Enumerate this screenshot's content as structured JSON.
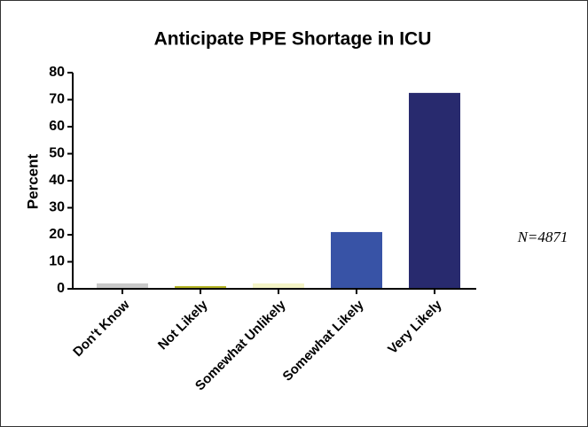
{
  "chart_data": {
    "type": "bar",
    "title": "Anticipate PPE Shortage in ICU",
    "y_label": "Percent",
    "annotation": "N=4871",
    "categories": [
      "Don't Know",
      "Not Likely",
      "Somewhat Unlikely",
      "Somewhat Likely",
      "Very Likely"
    ],
    "values": [
      2,
      1,
      2,
      21,
      72.5
    ],
    "colors": [
      "#c9c9c9",
      "#b3b324",
      "#f4f4c6",
      "#3853a6",
      "#282a6e"
    ],
    "ylim": [
      0,
      80
    ],
    "yticks": [
      0,
      10,
      20,
      30,
      40,
      50,
      60,
      70,
      80
    ]
  }
}
